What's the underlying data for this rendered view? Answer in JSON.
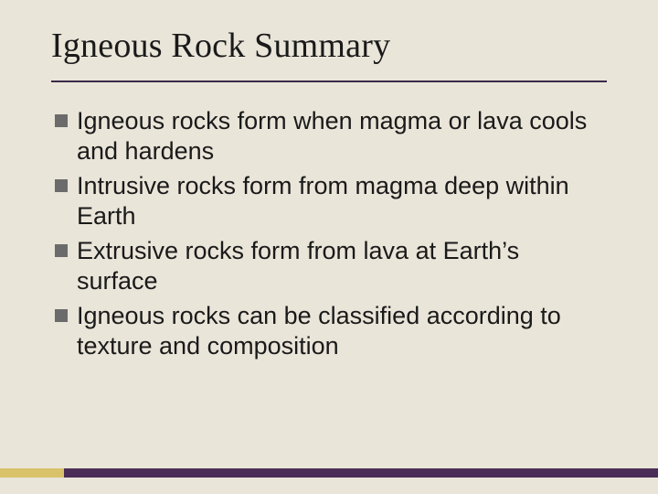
{
  "slide": {
    "title": "Igneous Rock Summary",
    "background_color": "#eae5d9",
    "title_color": "#1a1a1a",
    "title_fontsize": 38,
    "title_font_family": "Times New Roman",
    "rule_color": "#3b2a4a",
    "bullet_marker_color": "#6b6b6b",
    "bullet_text_color": "#1a1a1a",
    "bullet_fontsize": 27,
    "bullets": [
      "Igneous rocks form when magma or lava cools and hardens",
      "Intrusive rocks form from magma deep within Earth",
      "Extrusive rocks form from lava at Earth’s surface",
      "Igneous rocks can be classified according to texture and composition"
    ],
    "deco": {
      "left_color": "#d8c36a",
      "right_color": "#4b2e57"
    }
  }
}
